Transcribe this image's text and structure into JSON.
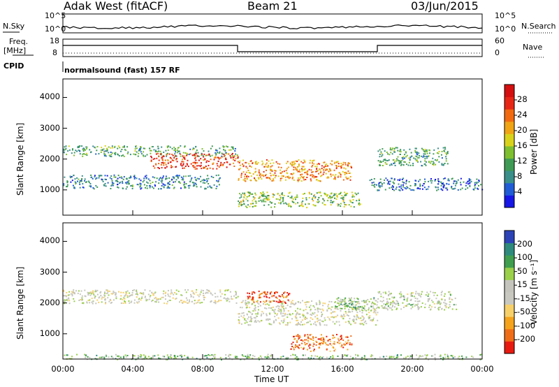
{
  "header": {
    "site": "Adak West (fitACF)",
    "beam": "Beam 21",
    "date": "03/Jun/2015"
  },
  "nsky": {
    "label": "N.Sky",
    "ticks": [
      "10^5",
      "10^0"
    ]
  },
  "nsearch": {
    "label": "N.Search",
    "ticks": [
      "10^5",
      "10^0"
    ]
  },
  "freq": {
    "label_top": "Freq.",
    "label_unit": "[MHz]",
    "ticks": [
      "18",
      "8"
    ]
  },
  "nave": {
    "label": "Nave",
    "ticks": [
      "60",
      "0"
    ]
  },
  "cpid": {
    "label": "CPID",
    "value": "normalsound (fast) 157 RF"
  },
  "colors": {
    "power": [
      "#1616e6",
      "#1f5cd6",
      "#3a8f8a",
      "#3f9a55",
      "#7dbf2f",
      "#d9d21a",
      "#f0a414",
      "#f26a10",
      "#e82616",
      "#d50f0f"
    ],
    "velocity": [
      "#e81a10",
      "#f06d18",
      "#f5a31c",
      "#f7d06a",
      "#c8c8c0",
      "#c4c4bc",
      "#9ad04a",
      "#3f9f4f",
      "#2e8a7d",
      "#2c43b8"
    ]
  },
  "chart_data": [
    {
      "type": "heatmap",
      "title": "",
      "xlabel": "Time UT",
      "ylabel": "Slant Range [km]",
      "xticks": [
        "00:00",
        "04:00",
        "08:00",
        "12:00",
        "16:00",
        "20:00",
        "00:00"
      ],
      "yticks": [
        "1000",
        "2000",
        "3000",
        "4000"
      ],
      "xlim_hours": [
        0,
        24
      ],
      "ylim_km": [
        180,
        4600
      ],
      "colorbar": {
        "label": "Power [dB]",
        "ticks": [
          "4",
          "8",
          "12",
          "16",
          "20",
          "24",
          "28"
        ],
        "range": [
          0,
          30
        ]
      },
      "echo_bands": [
        {
          "t0": 0.0,
          "t1": 10.0,
          "r": [
            2100,
            2450
          ],
          "level": 0.35
        },
        {
          "t0": 5.0,
          "t1": 10.0,
          "r": [
            1700,
            2200
          ],
          "level": 0.85
        },
        {
          "t0": 10.0,
          "t1": 16.5,
          "r": [
            1300,
            2000
          ],
          "level": 0.7
        },
        {
          "t0": 10.0,
          "t1": 17.0,
          "r": [
            450,
            950
          ],
          "level": 0.45
        },
        {
          "t0": 0.0,
          "t1": 9.0,
          "r": [
            1050,
            1500
          ],
          "level": 0.25
        },
        {
          "t0": 17.5,
          "t1": 24.0,
          "r": [
            1000,
            1400
          ],
          "level": 0.2
        },
        {
          "t0": 18.0,
          "t1": 22.0,
          "r": [
            1800,
            2400
          ],
          "level": 0.35
        }
      ]
    },
    {
      "type": "heatmap",
      "title": "",
      "xlabel": "Time UT",
      "ylabel": "Slant Range [km]",
      "xticks": [
        "00:00",
        "04:00",
        "08:00",
        "12:00",
        "16:00",
        "20:00",
        "00:00"
      ],
      "yticks": [
        "1000",
        "2000",
        "3000",
        "4000"
      ],
      "xlim_hours": [
        0,
        24
      ],
      "ylim_km": [
        180,
        4600
      ],
      "colorbar": {
        "label": "Velocity [m s⁻¹]",
        "ticks": [
          "200",
          "100",
          "50",
          "15",
          "-15",
          "-50",
          "-100",
          "-200"
        ],
        "range": [
          -250,
          250
        ]
      },
      "echo_bands": [
        {
          "t0": 0.0,
          "t1": 10.0,
          "r": [
            2000,
            2450
          ],
          "level": 0.5
        },
        {
          "t0": 10.0,
          "t1": 18.0,
          "r": [
            1300,
            2100
          ],
          "level": 0.5
        },
        {
          "t0": 13.0,
          "t1": 16.5,
          "r": [
            450,
            1000
          ],
          "level": 0.15
        },
        {
          "t0": 10.5,
          "t1": 13.0,
          "r": [
            2000,
            2400
          ],
          "level": 0.1
        },
        {
          "t0": 15.5,
          "t1": 18.0,
          "r": [
            1800,
            2200
          ],
          "level": 0.65
        },
        {
          "t0": 18.0,
          "t1": 22.5,
          "r": [
            1800,
            2400
          ],
          "level": 0.55
        },
        {
          "t0": 0.0,
          "t1": 24.0,
          "r": [
            180,
            350
          ],
          "level": 0.65
        }
      ]
    }
  ]
}
